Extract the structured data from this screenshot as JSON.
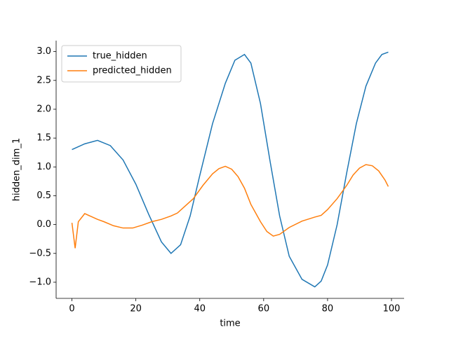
{
  "chart_data": {
    "type": "line",
    "xlabel": "time",
    "ylabel": "hidden_dim_1",
    "xlim": [
      -4.95,
      103.95
    ],
    "ylim": [
      -1.28,
      3.19
    ],
    "xticks": [
      0,
      20,
      40,
      60,
      80,
      100
    ],
    "yticks": [
      {
        "value": -1,
        "label": "−1.0"
      },
      {
        "value": -0.5,
        "label": "−0.5"
      },
      {
        "value": 0,
        "label": "0.0"
      },
      {
        "value": 0.5,
        "label": "0.5"
      },
      {
        "value": 1,
        "label": "1.0"
      },
      {
        "value": 1.5,
        "label": "1.5"
      },
      {
        "value": 2,
        "label": "2.0"
      },
      {
        "value": 2.5,
        "label": "2.5"
      },
      {
        "value": 3,
        "label": "3.0"
      }
    ],
    "legend": "upper left",
    "series": [
      {
        "name": "true_hidden",
        "color": "#1f77b4",
        "x": [
          0,
          4,
          8,
          12,
          16,
          20,
          24,
          28,
          31,
          34,
          37,
          40,
          44,
          48,
          51,
          54,
          56,
          59,
          62,
          65,
          68,
          72,
          76,
          78,
          80,
          83,
          86,
          89,
          92,
          95,
          97,
          99
        ],
        "values": [
          1.3,
          1.4,
          1.46,
          1.37,
          1.12,
          0.7,
          0.18,
          -0.3,
          -0.5,
          -0.35,
          0.15,
          0.85,
          1.75,
          2.45,
          2.85,
          2.95,
          2.8,
          2.1,
          1.1,
          0.15,
          -0.55,
          -0.95,
          -1.08,
          -0.98,
          -0.7,
          0.0,
          0.9,
          1.75,
          2.4,
          2.8,
          2.95,
          2.99
        ]
      },
      {
        "name": "predicted_hidden",
        "color": "#ff7f0e",
        "x": [
          0,
          1,
          2,
          4,
          6,
          8,
          10,
          13,
          16,
          19,
          22,
          25,
          28,
          31,
          33,
          36,
          38,
          41,
          44,
          46,
          48,
          50,
          52,
          54,
          56,
          59,
          61,
          63,
          65,
          68,
          72,
          76,
          78,
          80,
          83,
          86,
          88,
          90,
          92,
          94,
          96,
          98,
          99
        ],
        "values": [
          0.03,
          -0.41,
          0.05,
          0.19,
          0.14,
          0.09,
          0.05,
          -0.02,
          -0.06,
          -0.06,
          -0.01,
          0.05,
          0.09,
          0.15,
          0.2,
          0.35,
          0.45,
          0.68,
          0.88,
          0.97,
          1.01,
          0.96,
          0.83,
          0.63,
          0.35,
          0.05,
          -0.12,
          -0.2,
          -0.17,
          -0.05,
          0.06,
          0.13,
          0.16,
          0.26,
          0.45,
          0.68,
          0.86,
          0.98,
          1.04,
          1.02,
          0.93,
          0.77,
          0.66
        ]
      }
    ]
  }
}
